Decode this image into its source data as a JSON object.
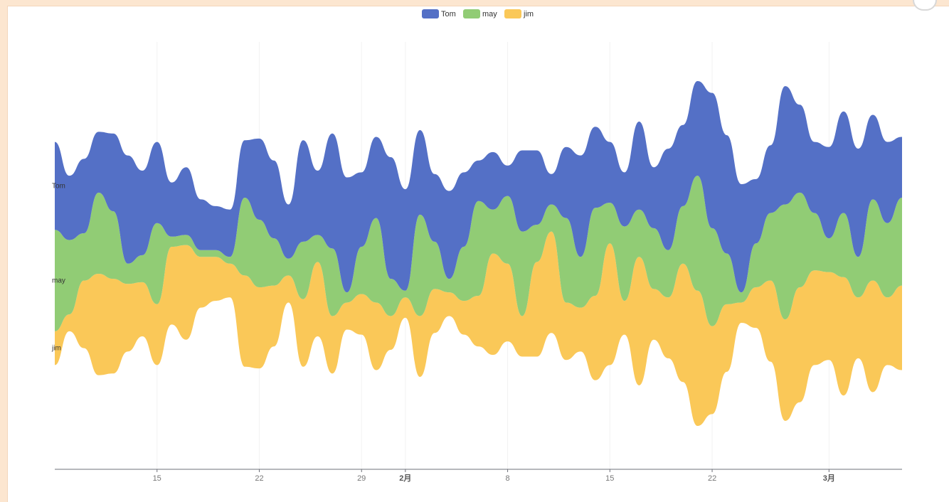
{
  "chart_data": {
    "type": "themeRiver",
    "title": "",
    "xlabel": "",
    "ylabel": "",
    "legend_position": "top-center",
    "x_start": "2016/01/08",
    "x_end": "2016/03/06",
    "x_tick_labels": [
      {
        "date": "2016/01/15",
        "label": "15",
        "major": false
      },
      {
        "date": "2016/01/22",
        "label": "22",
        "major": false
      },
      {
        "date": "2016/01/29",
        "label": "29",
        "major": false
      },
      {
        "date": "2016/02/01",
        "label": "2月",
        "major": true
      },
      {
        "date": "2016/02/08",
        "label": "8",
        "major": false
      },
      {
        "date": "2016/02/15",
        "label": "15",
        "major": false
      },
      {
        "date": "2016/02/22",
        "label": "22",
        "major": false
      },
      {
        "date": "2016/03/01",
        "label": "3月",
        "major": true
      }
    ],
    "series": [
      {
        "name": "jim",
        "color": "#fac858",
        "points": [
          [
            "2016/01/08",
            10
          ],
          [
            "2016/01/09",
            5
          ],
          [
            "2016/01/10",
            20
          ],
          [
            "2016/01/11",
            30
          ],
          [
            "2016/01/12",
            28
          ],
          [
            "2016/01/13",
            20
          ],
          [
            "2016/01/14",
            16
          ],
          [
            "2016/01/15",
            18
          ],
          [
            "2016/01/16",
            23
          ],
          [
            "2016/01/17",
            28
          ],
          [
            "2016/01/18",
            15
          ],
          [
            "2016/01/19",
            13
          ],
          [
            "2016/01/20",
            10
          ],
          [
            "2016/01/21",
            27
          ],
          [
            "2016/01/22",
            24
          ],
          [
            "2016/01/23",
            18
          ],
          [
            "2016/01/24",
            8
          ],
          [
            "2016/01/25",
            20
          ],
          [
            "2016/01/26",
            22
          ],
          [
            "2016/01/27",
            17
          ],
          [
            "2016/01/28",
            8
          ],
          [
            "2016/01/29",
            12
          ],
          [
            "2016/01/30",
            20
          ],
          [
            "2016/01/31",
            10
          ],
          [
            "2016/02/01",
            6
          ],
          [
            "2016/02/02",
            18
          ],
          [
            "2016/02/03",
            13
          ],
          [
            "2016/02/04",
            7
          ],
          [
            "2016/02/05",
            10
          ],
          [
            "2016/02/06",
            15
          ],
          [
            "2016/02/07",
            30
          ],
          [
            "2016/02/08",
            23
          ],
          [
            "2016/02/09",
            12
          ],
          [
            "2016/02/10",
            28
          ],
          [
            "2016/02/11",
            30
          ],
          [
            "2016/02/12",
            17
          ],
          [
            "2016/02/13",
            13
          ],
          [
            "2016/02/14",
            25
          ],
          [
            "2016/02/15",
            36
          ],
          [
            "2016/02/16",
            10
          ],
          [
            "2016/02/17",
            38
          ],
          [
            "2016/02/18",
            15
          ],
          [
            "2016/02/19",
            18
          ],
          [
            "2016/02/20",
            35
          ],
          [
            "2016/02/21",
            40
          ],
          [
            "2016/02/22",
            26
          ],
          [
            "2016/02/23",
            20
          ],
          [
            "2016/02/24",
            6
          ],
          [
            "2016/02/25",
            12
          ],
          [
            "2016/02/26",
            24
          ],
          [
            "2016/02/27",
            30
          ],
          [
            "2016/02/28",
            34
          ],
          [
            "2016/02/29",
            28
          ],
          [
            "2016/03/01",
            26
          ],
          [
            "2016/03/02",
            35
          ],
          [
            "2016/03/03",
            18
          ],
          [
            "2016/03/04",
            33
          ],
          [
            "2016/03/05",
            20
          ],
          [
            "2016/03/06",
            25
          ]
        ]
      },
      {
        "name": "may",
        "color": "#91cc75",
        "points": [
          [
            "2016/01/08",
            30
          ],
          [
            "2016/01/09",
            22
          ],
          [
            "2016/01/10",
            14
          ],
          [
            "2016/01/11",
            24
          ],
          [
            "2016/01/12",
            20
          ],
          [
            "2016/01/13",
            6
          ],
          [
            "2016/01/14",
            8
          ],
          [
            "2016/01/15",
            24
          ],
          [
            "2016/01/16",
            3
          ],
          [
            "2016/01/17",
            3
          ],
          [
            "2016/01/18",
            2
          ],
          [
            "2016/01/19",
            2
          ],
          [
            "2016/01/20",
            2
          ],
          [
            "2016/01/21",
            23
          ],
          [
            "2016/01/22",
            20
          ],
          [
            "2016/01/23",
            14
          ],
          [
            "2016/01/24",
            5
          ],
          [
            "2016/01/25",
            17
          ],
          [
            "2016/01/26",
            8
          ],
          [
            "2016/01/27",
            20
          ],
          [
            "2016/01/28",
            3
          ],
          [
            "2016/01/29",
            14
          ],
          [
            "2016/01/30",
            25
          ],
          [
            "2016/01/31",
            11
          ],
          [
            "2016/02/01",
            2
          ],
          [
            "2016/02/02",
            30
          ],
          [
            "2016/02/03",
            14
          ],
          [
            "2016/02/04",
            4
          ],
          [
            "2016/02/05",
            16
          ],
          [
            "2016/02/06",
            28
          ],
          [
            "2016/02/07",
            13
          ],
          [
            "2016/02/08",
            20
          ],
          [
            "2016/02/09",
            25
          ],
          [
            "2016/02/10",
            11
          ],
          [
            "2016/02/11",
            8
          ],
          [
            "2016/02/12",
            25
          ],
          [
            "2016/02/13",
            15
          ],
          [
            "2016/02/14",
            26
          ],
          [
            "2016/02/15",
            12
          ],
          [
            "2016/02/16",
            22
          ],
          [
            "2016/02/17",
            14
          ],
          [
            "2016/02/18",
            18
          ],
          [
            "2016/02/19",
            14
          ],
          [
            "2016/02/20",
            17
          ],
          [
            "2016/02/21",
            34
          ],
          [
            "2016/02/22",
            29
          ],
          [
            "2016/02/23",
            15
          ],
          [
            "2016/02/24",
            3
          ],
          [
            "2016/02/25",
            13
          ],
          [
            "2016/02/26",
            20
          ],
          [
            "2016/02/27",
            34
          ],
          [
            "2016/02/28",
            28
          ],
          [
            "2016/02/29",
            17
          ],
          [
            "2016/03/01",
            10
          ],
          [
            "2016/03/02",
            19
          ],
          [
            "2016/03/03",
            12
          ],
          [
            "2016/03/04",
            24
          ],
          [
            "2016/03/05",
            22
          ],
          [
            "2016/03/06",
            26
          ]
        ]
      },
      {
        "name": "Tom",
        "color": "#5470c6",
        "points": [
          [
            "2016/01/08",
            26
          ],
          [
            "2016/01/09",
            19
          ],
          [
            "2016/01/10",
            22
          ],
          [
            "2016/01/11",
            18
          ],
          [
            "2016/01/12",
            23
          ],
          [
            "2016/01/13",
            32
          ],
          [
            "2016/01/14",
            25
          ],
          [
            "2016/01/15",
            24
          ],
          [
            "2016/01/16",
            16
          ],
          [
            "2016/01/17",
            20
          ],
          [
            "2016/01/18",
            15
          ],
          [
            "2016/01/19",
            13
          ],
          [
            "2016/01/20",
            14
          ],
          [
            "2016/01/21",
            17
          ],
          [
            "2016/01/22",
            24
          ],
          [
            "2016/01/23",
            23
          ],
          [
            "2016/01/24",
            16
          ],
          [
            "2016/01/25",
            30
          ],
          [
            "2016/01/26",
            19
          ],
          [
            "2016/01/27",
            34
          ],
          [
            "2016/01/28",
            34
          ],
          [
            "2016/01/29",
            22
          ],
          [
            "2016/01/30",
            24
          ],
          [
            "2016/01/31",
            36
          ],
          [
            "2016/02/01",
            30
          ],
          [
            "2016/02/02",
            25
          ],
          [
            "2016/02/03",
            20
          ],
          [
            "2016/02/04",
            26
          ],
          [
            "2016/02/05",
            22
          ],
          [
            "2016/02/06",
            12
          ],
          [
            "2016/02/07",
            17
          ],
          [
            "2016/02/08",
            9
          ],
          [
            "2016/02/09",
            24
          ],
          [
            "2016/02/10",
            22
          ],
          [
            "2016/02/11",
            9
          ],
          [
            "2016/02/12",
            21
          ],
          [
            "2016/02/13",
            30
          ],
          [
            "2016/02/14",
            24
          ],
          [
            "2016/02/15",
            18
          ],
          [
            "2016/02/16",
            16
          ],
          [
            "2016/02/17",
            26
          ],
          [
            "2016/02/18",
            18
          ],
          [
            "2016/02/19",
            30
          ],
          [
            "2016/02/20",
            24
          ],
          [
            "2016/02/21",
            28
          ],
          [
            "2016/02/22",
            40
          ],
          [
            "2016/02/23",
            35
          ],
          [
            "2016/02/24",
            32
          ],
          [
            "2016/02/25",
            19
          ],
          [
            "2016/02/26",
            20
          ],
          [
            "2016/02/27",
            35
          ],
          [
            "2016/02/28",
            26
          ],
          [
            "2016/02/29",
            21
          ],
          [
            "2016/03/01",
            27
          ],
          [
            "2016/03/02",
            30
          ],
          [
            "2016/03/03",
            32
          ],
          [
            "2016/03/04",
            25
          ],
          [
            "2016/03/05",
            24
          ],
          [
            "2016/03/06",
            18
          ]
        ]
      }
    ]
  }
}
